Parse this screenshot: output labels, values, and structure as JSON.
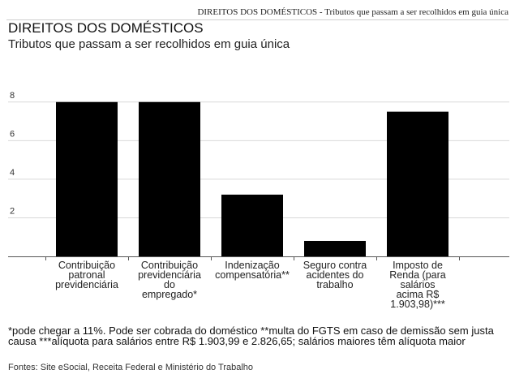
{
  "header": {
    "topline": "DIREITOS DOS DOMÉSTICOS - Tributos que passam a ser recolhidos em guia única",
    "title": "DIREITOS DOS DOMÉSTICOS",
    "subtitle": "Tributos que passam a ser recolhidos em guia única"
  },
  "chart_data": {
    "type": "bar",
    "categories": [
      "Contribuição patronal previdenciária",
      "Contribuição previdenciária do empregado*",
      "Indenização compensatória**",
      "Seguro contra acidentes do trabalho",
      "Imposto de Renda (para salários acima R$ 1.903,98)***"
    ],
    "category_lines": [
      [
        "Contribuição",
        "patronal",
        "previdenciária"
      ],
      [
        "Contribuição",
        "previdenciária",
        "do",
        "empregado*"
      ],
      [
        "Indenização",
        "compensatória**"
      ],
      [
        "Seguro contra",
        "acidentes do",
        "trabalho"
      ],
      [
        "Imposto de",
        "Renda (para",
        "salários",
        "acima R$",
        "1.903,98)***"
      ]
    ],
    "values": [
      8,
      8,
      3.2,
      0.8,
      7.5
    ],
    "yticks": [
      2,
      4,
      6,
      8
    ],
    "ylim": [
      0,
      8.2
    ],
    "grid": true,
    "bar_color": "#000000",
    "grid_color": "#d9d9d9"
  },
  "footer": {
    "notes": "*pode chegar a 11%. Pode ser cobrada do doméstico **multa do FGTS em caso de demissão sem justa causa ***alíquota para salários entre R$ 1.903,99 e 2.826,65; salários maiores têm alíquota maior",
    "source": "Fontes: Site eSocial, Receita Federal e Ministério do Trabalho"
  }
}
